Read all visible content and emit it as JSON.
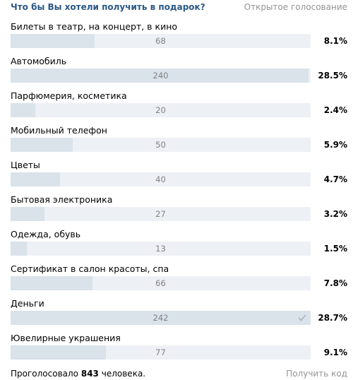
{
  "poll": {
    "question": "Что бы Вы хотели получить в подарок?",
    "type_label": "Открытое голосование",
    "answers": [
      {
        "label": "Билеты в театр, на концерт, в кино",
        "count": "68",
        "percent": "8.1%",
        "fraction": 0.281,
        "voted": false
      },
      {
        "label": "Автомобиль",
        "count": "240",
        "percent": "28.5%",
        "fraction": 0.992,
        "voted": false
      },
      {
        "label": "Парфюмерия, косметика",
        "count": "20",
        "percent": "2.4%",
        "fraction": 0.083,
        "voted": false
      },
      {
        "label": "Мобильный телефон",
        "count": "50",
        "percent": "5.9%",
        "fraction": 0.207,
        "voted": false
      },
      {
        "label": "Цветы",
        "count": "40",
        "percent": "4.7%",
        "fraction": 0.165,
        "voted": false
      },
      {
        "label": "Бытовая электроника",
        "count": "27",
        "percent": "3.2%",
        "fraction": 0.112,
        "voted": false
      },
      {
        "label": "Одежда, обувь",
        "count": "13",
        "percent": "1.5%",
        "fraction": 0.054,
        "voted": false
      },
      {
        "label": "Сертификат в салон красоты, спа",
        "count": "66",
        "percent": "7.8%",
        "fraction": 0.273,
        "voted": false
      },
      {
        "label": "Деньги",
        "count": "242",
        "percent": "28.7%",
        "fraction": 1.0,
        "voted": true
      },
      {
        "label": "Ювелирные украшения",
        "count": "77",
        "percent": "9.1%",
        "fraction": 0.318,
        "voted": false
      }
    ],
    "footer": {
      "total_prefix": "Проголосовало",
      "total_count": "843",
      "total_suffix": "человека.",
      "get_code_label": "Получить код"
    }
  },
  "colors": {
    "question": "#2a5885",
    "bar_background": "#edf0f5",
    "bar_fill": "#dae2ea",
    "muted_text": "#939393",
    "check": "#a3b3c4"
  },
  "icons": {
    "voted_marker": "check-icon"
  }
}
